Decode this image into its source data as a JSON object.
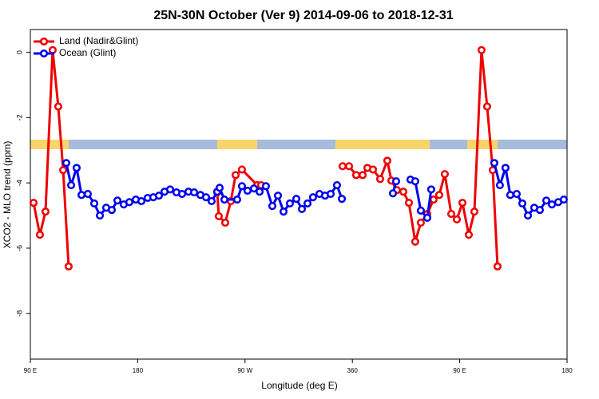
{
  "chart_data": {
    "type": "line",
    "title": "25N-30N October (Ver 9)   2014-09-06 to 2018-12-31",
    "x_label": "Longitude (deg E)",
    "y_label": "XCO2 - MLO trend (ppm)",
    "xlim": [
      90,
      540
    ],
    "ylim": [
      -9.4,
      0.7
    ],
    "xticks": [
      {
        "value": 90,
        "label": "90 E"
      },
      180,
      {
        "value": 270,
        "label": "90 W"
      },
      360,
      {
        "value": 450,
        "label": "90 E"
      },
      {
        "value": 540,
        "label": "180"
      }
    ],
    "yticks": [
      0,
      -2,
      -4,
      -6,
      -8
    ],
    "legend": "top-left",
    "series": [
      {
        "name": "Land (Nadir&Glint)",
        "color": "#ee0000",
        "x": [
          92.7,
          98.0,
          102.7,
          108.7,
          113.4,
          117.5,
          122.1,
          null,
          246.7,
          248.0,
          253.4,
          258.1,
          262.1,
          267.4,
          280.2,
          283.5,
          null,
          351.8,
          357.2,
          363.2,
          368.6,
          372.6,
          377.3,
          383.3,
          389.3,
          392.7,
          397.3,
          402.7,
          407.4,
          412.7,
          417.4,
          422.8,
          428.1,
          432.8,
          437.5,
          442.9,
          447.6,
          452.3,
          457.6,
          462.3,
          468.3,
          473.0,
          477.7,
          481.7
        ],
        "values": [
          -4.61,
          -5.59,
          -4.88,
          0.07,
          -1.66,
          -3.61,
          -6.56,
          null,
          -4.29,
          -5.02,
          -5.22,
          -4.56,
          -3.76,
          -3.59,
          -4.07,
          -4.07,
          null,
          -3.49,
          -3.49,
          -3.76,
          -3.76,
          -3.54,
          -3.59,
          -3.88,
          -3.32,
          -3.93,
          -4.22,
          -4.27,
          -4.61,
          -5.8,
          -5.22,
          -4.95,
          -4.51,
          -4.37,
          -3.73,
          -4.95,
          -5.12,
          -4.61,
          -5.59,
          -4.88,
          0.07,
          -1.66,
          -3.61,
          -6.56
        ]
      },
      {
        "name": "Ocean (Glint)",
        "color": "#0000ee",
        "x": [
          120.1,
          124.2,
          128.8,
          132.9,
          138.2,
          143.6,
          148.3,
          153.6,
          158.3,
          163.0,
          168.3,
          173.0,
          178.4,
          183.1,
          188.4,
          193.1,
          197.8,
          202.5,
          207.2,
          212.5,
          217.2,
          222.6,
          227.3,
          232.6,
          237.3,
          242.0,
          246.7,
          248.7,
          252.7,
          263.4,
          267.4,
          272.1,
          277.5,
          282.2,
          287.5,
          292.9,
          297.6,
          302.3,
          307.6,
          313.0,
          317.7,
          322.4,
          327.0,
          332.4,
          337.1,
          341.8,
          347.1,
          351.2,
          null,
          394.0,
          396.7,
          null,
          408.7,
          412.7,
          417.4,
          422.8,
          426.1,
          null,
          479.0,
          483.7,
          488.4,
          492.4,
          497.8,
          502.5,
          507.2,
          512.5,
          517.2,
          522.6,
          527.3,
          532.6,
          537.3
        ],
        "values": [
          -3.39,
          -4.07,
          -3.54,
          -4.37,
          -4.34,
          -4.63,
          -5.0,
          -4.76,
          -4.83,
          -4.54,
          -4.66,
          -4.59,
          -4.51,
          -4.56,
          -4.46,
          -4.44,
          -4.39,
          -4.27,
          -4.2,
          -4.29,
          -4.34,
          -4.27,
          -4.29,
          -4.37,
          -4.44,
          -4.56,
          -4.27,
          -4.15,
          -4.51,
          -4.51,
          -4.1,
          -4.24,
          -4.17,
          -4.27,
          -4.1,
          -4.71,
          -4.39,
          -4.88,
          -4.63,
          -4.49,
          -4.8,
          -4.63,
          -4.44,
          -4.34,
          -4.39,
          -4.34,
          -4.07,
          -4.49,
          null,
          -4.32,
          -3.95,
          null,
          -3.9,
          -3.95,
          -4.85,
          -5.07,
          -4.2,
          null,
          -3.39,
          -4.07,
          -3.54,
          -4.37,
          -4.34,
          -4.63,
          -5.0,
          -4.76,
          -4.83,
          -4.54,
          -4.66,
          -4.59,
          -4.51
        ]
      }
    ]
  }
}
